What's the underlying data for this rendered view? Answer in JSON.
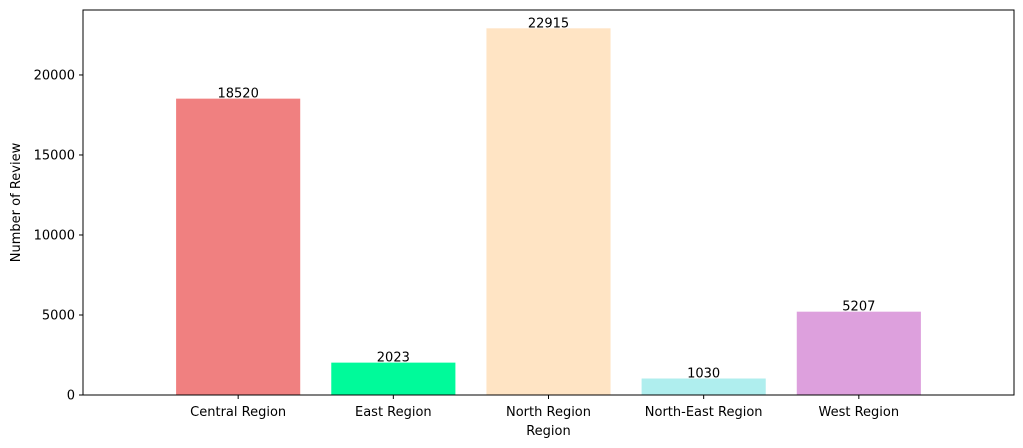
{
  "chart_data": {
    "type": "bar",
    "title": "",
    "xlabel": "Region",
    "ylabel": "Number of Review",
    "categories": [
      "Central Region",
      "East Region",
      "North Region",
      "North-East Region",
      "West Region"
    ],
    "values": [
      18520,
      2023,
      22915,
      1030,
      5207
    ],
    "value_labels": [
      "18520",
      "2023",
      "22915",
      "1030",
      "5207"
    ],
    "colors": [
      "#f08080",
      "#00fa9a",
      "#ffe4c4",
      "#afeeee",
      "#dda0dd"
    ],
    "ylim": [
      0,
      24060
    ],
    "yticks": [
      0,
      5000,
      10000,
      15000,
      20000
    ],
    "ytick_labels": [
      "0",
      "5000",
      "10000",
      "15000",
      "20000"
    ],
    "grid": false,
    "legend": "none"
  }
}
